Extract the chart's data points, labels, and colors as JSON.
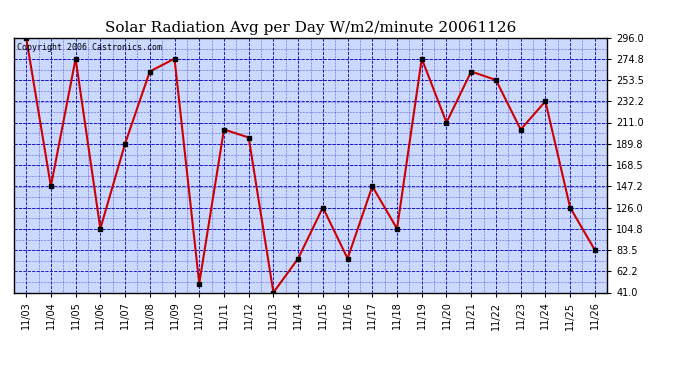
{
  "title": "Solar Radiation Avg per Day W/m2/minute 20061126",
  "copyright": "Copyright 2006 Castronics.com",
  "dates": [
    "11/03",
    "11/04",
    "11/05",
    "11/06",
    "11/07",
    "11/08",
    "11/09",
    "11/10",
    "11/11",
    "11/12",
    "11/13",
    "11/14",
    "11/15",
    "11/16",
    "11/17",
    "11/18",
    "11/19",
    "11/20",
    "11/21",
    "11/22",
    "11/23",
    "11/24",
    "11/25",
    "11/26"
  ],
  "values": [
    296.0,
    147.2,
    274.8,
    104.8,
    189.8,
    262.0,
    274.8,
    50.0,
    204.0,
    196.0,
    41.0,
    75.0,
    126.0,
    75.0,
    147.2,
    104.8,
    274.8,
    211.0,
    262.0,
    253.5,
    204.0,
    232.2,
    126.0,
    83.5
  ],
  "ylim": [
    41.0,
    296.0
  ],
  "yticks": [
    41.0,
    62.2,
    83.5,
    104.8,
    126.0,
    147.2,
    168.5,
    189.8,
    211.0,
    232.2,
    253.5,
    274.8,
    296.0
  ],
  "line_color": "#cc0000",
  "marker_color": "#000000",
  "bg_color": "#ccd9ff",
  "grid_color": "#0000bb",
  "title_fontsize": 11,
  "copyright_fontsize": 6,
  "fig_width": 6.9,
  "fig_height": 3.75,
  "dpi": 100
}
